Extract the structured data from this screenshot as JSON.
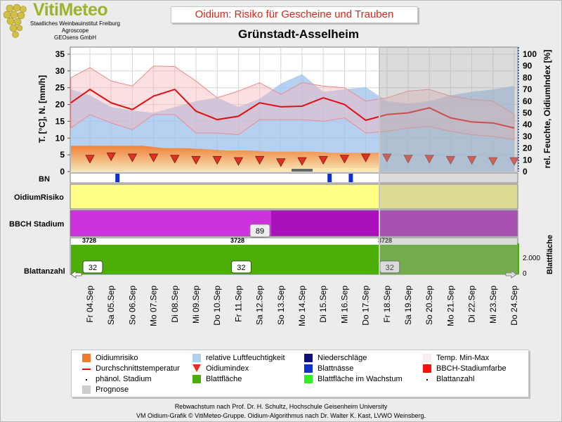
{
  "logo": {
    "name": "VitiMeteo",
    "line1": "Staatliches Weinbauinstitut Freiburg",
    "line2": "Agroscope",
    "line3": "GEOsens GmbH"
  },
  "header": {
    "title": "Oidium: Risiko für Gescheine und Trauben",
    "station": "Grünstadt-Asselheim"
  },
  "chart_data": {
    "type": "line",
    "x": [
      "Fr 04.Sep",
      "Sa 05.Sep",
      "So 06.Sep",
      "Mo 07.Sep",
      "Di 08.Sep",
      "Mi 09.Sep",
      "Do 10.Sep",
      "Fr 11.Sep",
      "Sa 12.Sep",
      "So 13.Sep",
      "Mo 14.Sep",
      "Di 15.Sep",
      "Mi 16.Sep",
      "Do 17.Sep",
      "Fr 18.Sep",
      "Sa 19.Sep",
      "So 20.Sep",
      "Mo 21.Sep",
      "Di 22.Sep",
      "Mi 23.Sep",
      "Do 24.Sep"
    ],
    "prognosis_from": "Fr 18.Sep",
    "ylabel_left": "T. [°C], N. [mm/h]",
    "ylim_left": [
      0,
      35
    ],
    "yticks_left": [
      0,
      5,
      10,
      15,
      20,
      25,
      30,
      35
    ],
    "ylabel_right": "rel. Feuchte, OidiumIndex [%]",
    "ylim_right": [
      0,
      100
    ],
    "yticks_right": [
      0,
      10,
      20,
      30,
      40,
      50,
      60,
      70,
      80,
      90,
      100
    ],
    "grid": true,
    "temp_avg": [
      20.5,
      24.5,
      20.5,
      18.5,
      22.5,
      24.5,
      18,
      15.5,
      16.5,
      20.5,
      19.3,
      19.5,
      22,
      20,
      15.3,
      17,
      17.5,
      19,
      16,
      14.8,
      14.5,
      13
    ],
    "temp_avg_x": [
      -0.9,
      0,
      1,
      2,
      3,
      4,
      5,
      6,
      7,
      8,
      9,
      10,
      11,
      12,
      13,
      14,
      15,
      16,
      17,
      18,
      19,
      20
    ],
    "temp_max": [
      28,
      31,
      27,
      25.5,
      31.5,
      31.3,
      27,
      22,
      24,
      26.5,
      23,
      26.5,
      25.5,
      25,
      21,
      22,
      24,
      24.5,
      22.5,
      21.5,
      21,
      17
    ],
    "temp_min": [
      13,
      17,
      14.5,
      12.5,
      17,
      17,
      11.5,
      11.5,
      11,
      15.5,
      15.5,
      15.5,
      15,
      16,
      11.5,
      12,
      13,
      13.5,
      12,
      11,
      10.5,
      9.5
    ],
    "humidity": [
      70,
      65,
      55,
      52,
      50,
      55,
      60,
      63,
      55,
      62,
      75,
      83,
      68,
      70,
      72,
      60,
      58,
      60,
      65,
      68,
      70,
      73
    ],
    "oidium_index": [
      11,
      13,
      12,
      12,
      11,
      10,
      10,
      9,
      10,
      8,
      9,
      10,
      11,
      12,
      12,
      11,
      11,
      10,
      10,
      9,
      9
    ],
    "oidiumrisiko_level": [
      22,
      22,
      22,
      22,
      20,
      20,
      19,
      18,
      18,
      17,
      17,
      17,
      16,
      16,
      16
    ],
    "panels": {
      "bn_label": "BN",
      "oidiumrisiko_label": "OidiumRisiko",
      "bbch_label": "BBCH Stadium",
      "bbch_value": "89",
      "blattanzahl_label": "Blattanzahl",
      "blattanzahl_value": "32",
      "blattflaeche_label": "Blattfläche",
      "blattflaeche_tick_max": "2.000",
      "blattflaeche_tick_min": "0",
      "blattflaeche_value": "3728",
      "blattnaesse_days": [
        1,
        11,
        12
      ]
    },
    "colors": {
      "temp_avg": "#e01010",
      "temp_band": "#f4a3a3",
      "humidity": "#8fb6e8",
      "oidiumrisiko": "#f27c2d",
      "risk_low": "#ffff88",
      "bbch_a": "#cc33dd",
      "bbch_b": "#aa11bb",
      "leaf_area": "#4caf08",
      "blattnaesse": "#1030d0",
      "triangle": "#e03020"
    }
  },
  "legend": [
    {
      "label": "Oidiumrisiko",
      "swatch": "#f27c2d",
      "kind": "box"
    },
    {
      "label": "relative Luftfeuchtigkeit",
      "swatch": "#b6cff0",
      "kind": "box"
    },
    {
      "label": "Niederschläge",
      "swatch": "#10107a",
      "kind": "box"
    },
    {
      "label": "Temp. Min-Max",
      "swatch": "#f7eef0",
      "kind": "box"
    },
    {
      "label": "Durchschnittstemperatur",
      "swatch": "#e01010",
      "kind": "line"
    },
    {
      "label": "Oidiumindex",
      "swatch": "#e03020",
      "kind": "triangle"
    },
    {
      "label": "Blattnässe",
      "swatch": "#1030d0",
      "kind": "box"
    },
    {
      "label": "BBCH-Stadiumfarbe",
      "swatch": "#ff1010",
      "kind": "box"
    },
    {
      "label": "phänol. Stadium",
      "swatch": "#000",
      "kind": "dot"
    },
    {
      "label": "Blattfläche",
      "swatch": "#4caf08",
      "kind": "box"
    },
    {
      "label": "Blattfläche im Wachstum",
      "swatch": "#33ee22",
      "kind": "box"
    },
    {
      "label": "Blattanzahl",
      "swatch": "#000",
      "kind": "dot"
    },
    {
      "label": "Prognose",
      "swatch": "#cdcdcd",
      "kind": "box"
    }
  ],
  "footer": {
    "line1": "Rebwachstum nach Prof. Dr. H. Schultz, Hochschule Geisenheim University",
    "line2": "VM Oidium-Grafik © VitiMeteo-Gruppe. Oidium-Algorithmus nach Dr. Walter K. Kast, LVWO Weinsberg."
  }
}
